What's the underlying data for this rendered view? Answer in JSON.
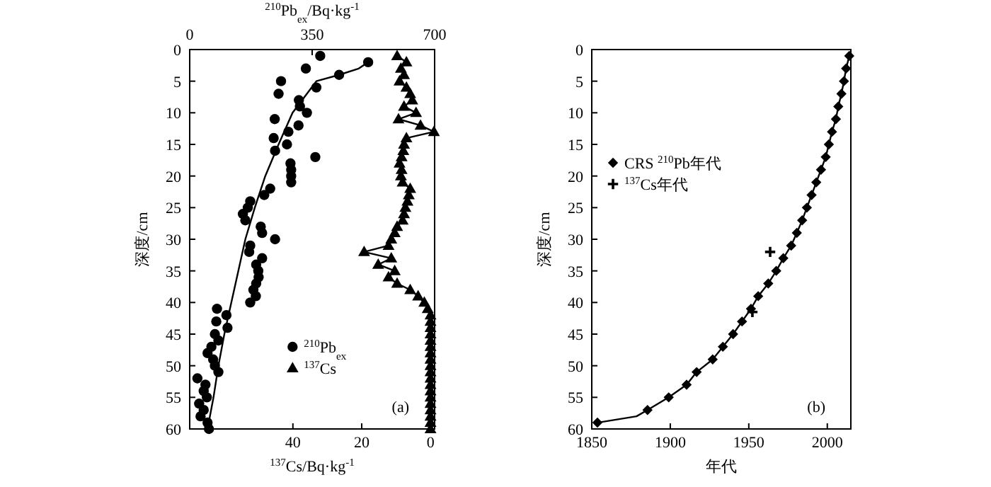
{
  "chart_data": [
    {
      "type": "scatter",
      "xlabel": "$^{137}$Cs/Bq·kg$^{-1}$",
      "x2label": "$^{210}$Pb$_{ex}$/Bq·kg$^{-1}$",
      "ylabel": "深度/cm",
      "xlim": [
        70,
        -1.2
      ],
      "xticks": [
        40,
        20,
        0
      ],
      "x2lim": [
        0,
        700
      ],
      "x2ticks": [
        0,
        350,
        700
      ],
      "ylim": [
        60,
        0
      ],
      "yticks": [
        0,
        5,
        10,
        15,
        20,
        25,
        30,
        35,
        40,
        45,
        50,
        55,
        60
      ],
      "legend": "bottom",
      "annotations": [
        "(a)"
      ],
      "series": [
        {
          "name": "$^{210}$Pb$_{ex}$",
          "type": "scatter",
          "axis": "x2",
          "marker": "circle",
          "color": "#000000",
          "x": [
            373,
            510,
            332,
            427,
            261,
            362,
            254,
            312,
            315,
            335,
            243,
            311,
            282,
            240,
            278,
            244,
            359,
            288,
            290,
            290,
            290,
            230,
            213,
            173,
            166,
            152,
            159,
            203,
            207,
            244,
            173,
            170,
            207,
            190,
            196,
            197,
            190,
            182,
            189,
            173,
            78,
            105,
            76,
            108,
            72,
            82,
            62,
            51,
            67,
            72,
            82,
            22,
            45,
            40,
            49,
            27,
            40,
            31,
            51,
            55
          ],
          "values": [
            1,
            2,
            3,
            4,
            5,
            6,
            7,
            8,
            9,
            10,
            11,
            12,
            13,
            14,
            15,
            16,
            17,
            18,
            19,
            20,
            21,
            22,
            23,
            24,
            25,
            26,
            27,
            28,
            29,
            30,
            31,
            32,
            33,
            34,
            35,
            36,
            37,
            38,
            39,
            40,
            41,
            42,
            43,
            44,
            45,
            46,
            47,
            48,
            49,
            50,
            51,
            52,
            53,
            54,
            55,
            56,
            57,
            58,
            59,
            60
          ]
        },
        {
          "type": "line",
          "axis": "x2",
          "marker": "none",
          "color": "#000000",
          "x": [
            510,
            483,
            427,
            362,
            294,
            254,
            216,
            186,
            159,
            139,
            119,
            99,
            82,
            68,
            51
          ],
          "values": [
            2,
            3,
            4,
            5,
            10,
            15,
            20,
            25,
            30,
            35,
            40,
            45,
            50,
            55,
            60
          ]
        },
        {
          "name": "$^{137}$Cs",
          "type": "line",
          "marker": "triangle",
          "color": "#000000",
          "x": [
            9.7,
            7.0,
            8.6,
            7.7,
            9.0,
            7.0,
            5.9,
            5.3,
            7.7,
            4.2,
            9.3,
            2.9,
            -1.0,
            7.0,
            7.7,
            7.9,
            8.4,
            9.0,
            8.4,
            8.6,
            8.1,
            5.9,
            6.3,
            6.7,
            7.3,
            7.7,
            8.1,
            9.7,
            10.4,
            11.4,
            12.2,
            19.3,
            11.4,
            15.2,
            10.4,
            12.2,
            9.7,
            5.9,
            3.6,
            1.8,
            0.8,
            0,
            0,
            0,
            0,
            0,
            0,
            0,
            0,
            0,
            0,
            0,
            0,
            0,
            0,
            0,
            0,
            0,
            0,
            0
          ],
          "values": [
            1,
            2,
            3,
            4,
            5,
            6,
            7,
            8,
            9,
            10,
            11,
            12,
            13,
            14,
            15,
            16,
            17,
            18,
            19,
            20,
            21,
            22,
            23,
            24,
            25,
            26,
            27,
            28,
            29,
            30,
            31,
            32,
            33,
            34,
            35,
            36,
            37,
            38,
            39,
            40,
            41,
            42,
            43,
            44,
            45,
            46,
            47,
            48,
            49,
            50,
            51,
            52,
            53,
            54,
            55,
            56,
            57,
            58,
            59,
            60
          ]
        }
      ]
    },
    {
      "type": "scatter",
      "xlabel": "年代",
      "ylabel": "深度/cm",
      "xlim": [
        1850,
        2015
      ],
      "xticks": [
        1850,
        1900,
        1950,
        2000
      ],
      "ylim": [
        60,
        0
      ],
      "yticks": [
        0,
        5,
        10,
        15,
        20,
        25,
        30,
        35,
        40,
        45,
        50,
        55,
        60
      ],
      "legend": "top left",
      "annotations": [
        "(b)"
      ],
      "series": [
        {
          "type": "line",
          "marker": "none",
          "color": "#000000",
          "x": [
            2014,
            2012,
            2010.6,
            2009,
            2007,
            2005.5,
            2003,
            2001,
            1999,
            1996,
            1993,
            1990,
            1987,
            1984,
            1980.6,
            1977,
            1972,
            1967.5,
            1962.4,
            1956,
            1951.4,
            1945.7,
            1940,
            1933.5,
            1927,
            1916.8,
            1910.4,
            1899,
            1885.5,
            1878.5,
            1853.6
          ],
          "values": [
            1,
            3,
            5,
            7,
            9,
            11,
            13,
            15,
            17,
            19,
            21,
            23,
            25,
            27,
            29,
            31,
            33,
            35,
            37,
            39,
            41,
            43,
            45,
            47,
            49,
            51,
            53,
            55,
            57,
            58,
            59
          ]
        },
        {
          "name": "CRS $^{210}$Pb年代",
          "type": "scatter",
          "marker": "diamond",
          "color": "#000000",
          "x": [
            2014,
            2012,
            2010.6,
            2009,
            2007,
            2005.5,
            2003,
            2001,
            1999,
            1996,
            1993,
            1990,
            1987,
            1984,
            1980.6,
            1977,
            1972,
            1967.5,
            1962.4,
            1956,
            1951.4,
            1945.7,
            1940,
            1933.5,
            1927,
            1916.8,
            1910.4,
            1899,
            1885.5,
            1853.6
          ],
          "values": [
            1,
            3,
            5,
            7,
            9,
            11,
            13,
            15,
            17,
            19,
            21,
            23,
            25,
            27,
            29,
            31,
            33,
            35,
            37,
            39,
            41,
            43,
            45,
            47,
            49,
            51,
            53,
            55,
            57,
            59
          ]
        },
        {
          "name": "$^{137}$Cs年代",
          "type": "scatter",
          "marker": "cross",
          "color": "#000000",
          "x": [
            1963.6,
            1952.3
          ],
          "values": [
            32,
            41.5
          ]
        }
      ]
    }
  ]
}
